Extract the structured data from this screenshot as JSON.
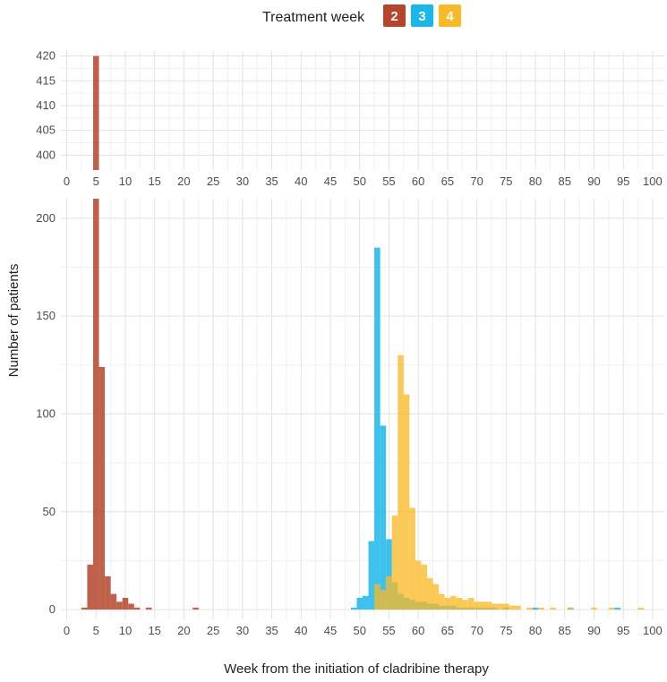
{
  "chart_data": {
    "type": "bar",
    "xlabel": "Week from the initiation of cladribine therapy",
    "ylabel": "Number of patients",
    "legend": {
      "title": "Treatment week",
      "position": "top",
      "entries": [
        {
          "label": "2",
          "color": "#b5462b"
        },
        {
          "label": "3",
          "color": "#1bb6ea"
        },
        {
          "label": "4",
          "color": "#f9ba27"
        }
      ]
    },
    "grid": true,
    "x_ticks": [
      "0",
      "5",
      "10",
      "15",
      "20",
      "25",
      "30",
      "35",
      "40",
      "45",
      "50",
      "55",
      "60",
      "65",
      "70",
      "75",
      "80",
      "85",
      "90",
      "95",
      "100"
    ],
    "xlim": [
      -1,
      102
    ],
    "panels": [
      {
        "name": "upper",
        "ylim": [
          397,
          421
        ],
        "y_ticks": [
          400,
          405,
          410,
          415,
          420
        ]
      },
      {
        "name": "lower",
        "ylim": [
          -5,
          210
        ],
        "y_ticks": [
          0,
          50,
          100,
          150,
          200
        ]
      }
    ],
    "series": [
      {
        "name": "2",
        "color": "#b5462b",
        "opacity": 0.85,
        "x": [
          3,
          4,
          5,
          6,
          7,
          8,
          9,
          10,
          11,
          12,
          14,
          22
        ],
        "values": [
          1,
          23,
          420,
          124,
          17,
          8,
          4,
          6,
          3,
          1,
          1,
          1
        ]
      },
      {
        "name": "3",
        "color": "#1bb6ea",
        "opacity": 0.85,
        "x": [
          49,
          50,
          51,
          52,
          53,
          54,
          55,
          56,
          57,
          58,
          59,
          60,
          61,
          62,
          63,
          64,
          65,
          66,
          67,
          68,
          69,
          70,
          71,
          72,
          73,
          75,
          80,
          86,
          94
        ],
        "values": [
          1,
          6,
          7,
          35,
          185,
          94,
          36,
          14,
          8,
          6,
          5,
          4,
          4,
          3,
          3,
          2,
          2,
          2,
          1,
          1,
          1,
          1,
          1,
          1,
          1,
          1,
          1,
          1,
          1
        ]
      },
      {
        "name": "4",
        "color": "#f9ba27",
        "opacity": 0.78,
        "x": [
          53,
          54,
          55,
          56,
          57,
          58,
          59,
          60,
          61,
          62,
          63,
          64,
          65,
          66,
          67,
          68,
          69,
          70,
          71,
          72,
          73,
          74,
          75,
          76,
          77,
          79,
          81,
          83,
          86,
          90,
          93,
          98
        ],
        "values": [
          13,
          10,
          17,
          48,
          130,
          110,
          52,
          25,
          23,
          16,
          13,
          8,
          6,
          7,
          6,
          5,
          6,
          4,
          4,
          4,
          3,
          3,
          3,
          2,
          2,
          1,
          1,
          1,
          1,
          1,
          1,
          1
        ]
      }
    ]
  }
}
